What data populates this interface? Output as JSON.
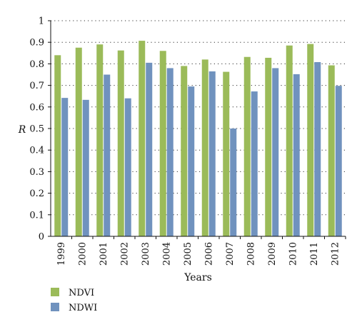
{
  "chart_data": {
    "type": "bar",
    "categories": [
      "1999",
      "2000",
      "2001",
      "2002",
      "2003",
      "2004",
      "2005",
      "2006",
      "2007",
      "2008",
      "2009",
      "2010",
      "2011",
      "2012"
    ],
    "series": [
      {
        "name": "NDVI",
        "color": "#9bbb59",
        "values": [
          0.84,
          0.875,
          0.89,
          0.862,
          0.907,
          0.86,
          0.79,
          0.82,
          0.763,
          0.832,
          0.828,
          0.885,
          0.892,
          0.793
        ]
      },
      {
        "name": "NDWI",
        "color": "#7092be",
        "values": [
          0.642,
          0.633,
          0.75,
          0.64,
          0.805,
          0.78,
          0.695,
          0.765,
          0.5,
          0.672,
          0.78,
          0.752,
          0.808,
          0.698
        ]
      }
    ],
    "title": "",
    "xlabel": "Years",
    "ylabel": "R",
    "ylim": [
      0,
      1
    ],
    "yticks": [
      "0",
      "0.1",
      "0.2",
      "0.3",
      "0.4",
      "0.5",
      "0.6",
      "0.7",
      "0.8",
      "0.9",
      "1"
    ],
    "grid": "dotted horizontal",
    "legend_position": "bottom-left"
  }
}
